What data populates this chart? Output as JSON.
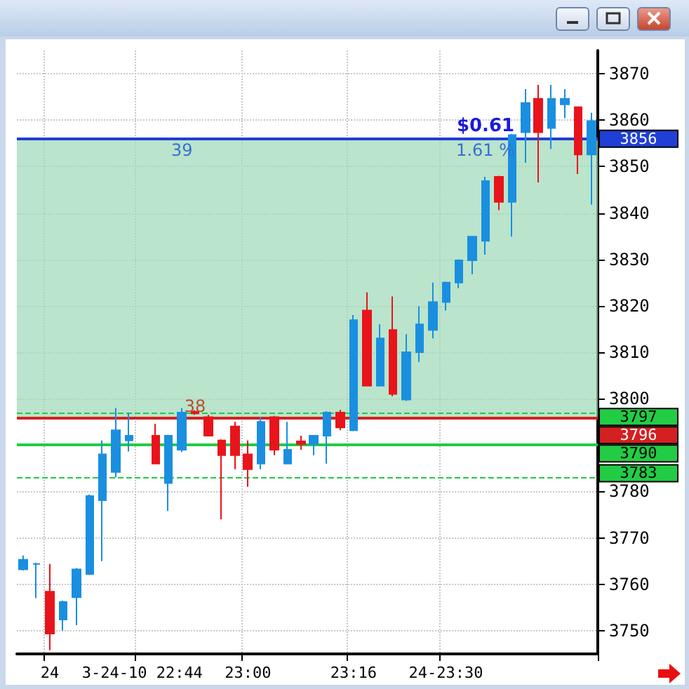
{
  "chart_data": {
    "type": "candlestick",
    "categories": [
      null,
      null,
      "24",
      null,
      null,
      null,
      null,
      null,
      null,
      "3-24-10 22:44",
      null,
      null,
      null,
      null,
      null,
      null,
      null,
      "23:00",
      null,
      null,
      null,
      null,
      null,
      null,
      null,
      "23:16",
      null,
      null,
      null,
      null,
      null,
      null,
      "24-23:30",
      null,
      null,
      null,
      null,
      null,
      null,
      null,
      null,
      null,
      null,
      null
    ],
    "ohlc": [
      [
        3763.2,
        3766.2,
        3763,
        3765.3
      ],
      [
        3764.4,
        3764.6,
        3757,
        3764.4
      ],
      [
        3758.4,
        3764.4,
        3745.8,
        3749.4
      ],
      [
        3752.4,
        3756.5,
        3750,
        3756.2
      ],
      [
        3757.2,
        3763.5,
        3751.2,
        3763.2
      ],
      [
        3762.2,
        3779.3,
        3762,
        3779
      ],
      [
        3778.1,
        3791,
        3765,
        3788
      ],
      [
        3784.2,
        3798,
        3783,
        3793.2
      ],
      [
        3791,
        3797,
        3788.6,
        3792
      ],
      null,
      [
        3792,
        3794.6,
        3786,
        3786
      ],
      [
        3781.8,
        3792.2,
        3775.8,
        3792
      ],
      [
        3789,
        3798,
        3788.5,
        3797
      ],
      [
        3796.8,
        3797.5,
        3796.5,
        3797.2
      ],
      [
        3796,
        3796.5,
        3792,
        3792
      ],
      [
        3791,
        3791.2,
        3774,
        3787.8
      ],
      [
        3794,
        3795,
        3784.8,
        3787.8
      ],
      [
        3788,
        3791,
        3781,
        3784.8
      ],
      [
        3786,
        3796,
        3784.8,
        3795
      ],
      [
        3796,
        3796.3,
        3787.8,
        3789
      ],
      [
        3786,
        3795,
        3786,
        3789
      ],
      [
        3790.8,
        3792,
        3789,
        3790.2
      ],
      [
        3790.2,
        3792,
        3787.8,
        3792
      ],
      [
        3792,
        3797.3,
        3786,
        3797
      ],
      [
        3797,
        3797.6,
        3793.2,
        3793.8
      ],
      [
        3793.2,
        3818,
        3793,
        3816.9
      ],
      [
        3819,
        3822.9,
        3802.8,
        3802.8
      ],
      [
        3802.8,
        3816,
        3802.8,
        3813
      ],
      [
        3814.8,
        3822,
        3800.5,
        3801
      ],
      [
        3799.8,
        3813.9,
        3799.5,
        3810
      ],
      [
        3810,
        3819.9,
        3807.9,
        3816
      ],
      [
        3814.8,
        3825,
        3813,
        3820.8
      ],
      [
        3820.8,
        3825.2,
        3819,
        3825
      ],
      [
        3825,
        3830,
        3823.8,
        3829.8
      ],
      [
        3829.8,
        3835,
        3826.8,
        3834.9
      ],
      [
        3834,
        3847.8,
        3831,
        3846.9
      ],
      [
        3847.8,
        3848,
        3840.6,
        3842.4
      ],
      [
        3842.4,
        3857,
        3834.9,
        3856.8
      ],
      [
        3857.4,
        3866.7,
        3850.8,
        3863.7
      ],
      [
        3864.6,
        3867.6,
        3846.6,
        3857.4
      ],
      [
        3858.3,
        3867.6,
        3853.8,
        3864.6
      ],
      [
        3863.4,
        3866.7,
        3860.4,
        3864.6
      ],
      [
        3862.8,
        3862.9,
        3848.4,
        3852.6
      ],
      [
        3852.6,
        3861.6,
        3841.8,
        3859.8
      ]
    ],
    "colors": [
      "#1a8fe0",
      "#1a8fe0",
      "#e8141b",
      "#1a8fe0",
      "#1a8fe0",
      "#1a8fe0",
      "#1a8fe0",
      "#1a8fe0",
      "#1a8fe0",
      null,
      "#e8141b",
      "#1a8fe0",
      "#1a8fe0",
      "#e8141b",
      "#e8141b",
      "#e8141b",
      "#e8141b",
      "#e8141b",
      "#1a8fe0",
      "#e8141b",
      "#1a8fe0",
      "#e8141b",
      "#1a8fe0",
      "#1a8fe0",
      "#e8141b",
      "#1a8fe0",
      "#e8141b",
      "#1a8fe0",
      "#e8141b",
      "#1a8fe0",
      "#1a8fe0",
      "#1a8fe0",
      "#1a8fe0",
      "#1a8fe0",
      "#1a8fe0",
      "#1a8fe0",
      "#e8141b",
      "#1a8fe0",
      "#1a8fe0",
      "#e8141b",
      "#1a8fe0",
      "#1a8fe0",
      "#e8141b",
      "#1a8fe0"
    ],
    "ylim": [
      3745,
      3875
    ],
    "yticks": [
      3750,
      3760,
      3770,
      3780,
      {
        "value": 3790,
        "label": null
      },
      3800,
      3810,
      3820,
      3830,
      3840,
      3850,
      3860,
      3870
    ],
    "grid": true,
    "bands": [
      {
        "axis": "y",
        "from": 3796,
        "to": 3856,
        "color": "#9fd9b8"
      }
    ],
    "ref_lines": [
      {
        "axis": "y",
        "value": 3856,
        "label": "3856",
        "color": "#1f3fd6",
        "line_style": "solid"
      },
      {
        "axis": "y",
        "value": 3797,
        "label": "3797",
        "color": "#22cc44",
        "line_style": "dashed"
      },
      {
        "axis": "y",
        "value": 3796,
        "label": "3796",
        "color": "#d42020",
        "line_style": "solid"
      },
      {
        "axis": "y",
        "value": 3790,
        "label": "3790",
        "color": "#22cc44",
        "line_style": "solid"
      },
      {
        "axis": "y",
        "value": 3783,
        "label": "3783",
        "color": "#22cc44",
        "line_style": "dashed"
      }
    ],
    "annotations": [
      "$0.61",
      "1.61 %",
      "39",
      "38"
    ]
  }
}
